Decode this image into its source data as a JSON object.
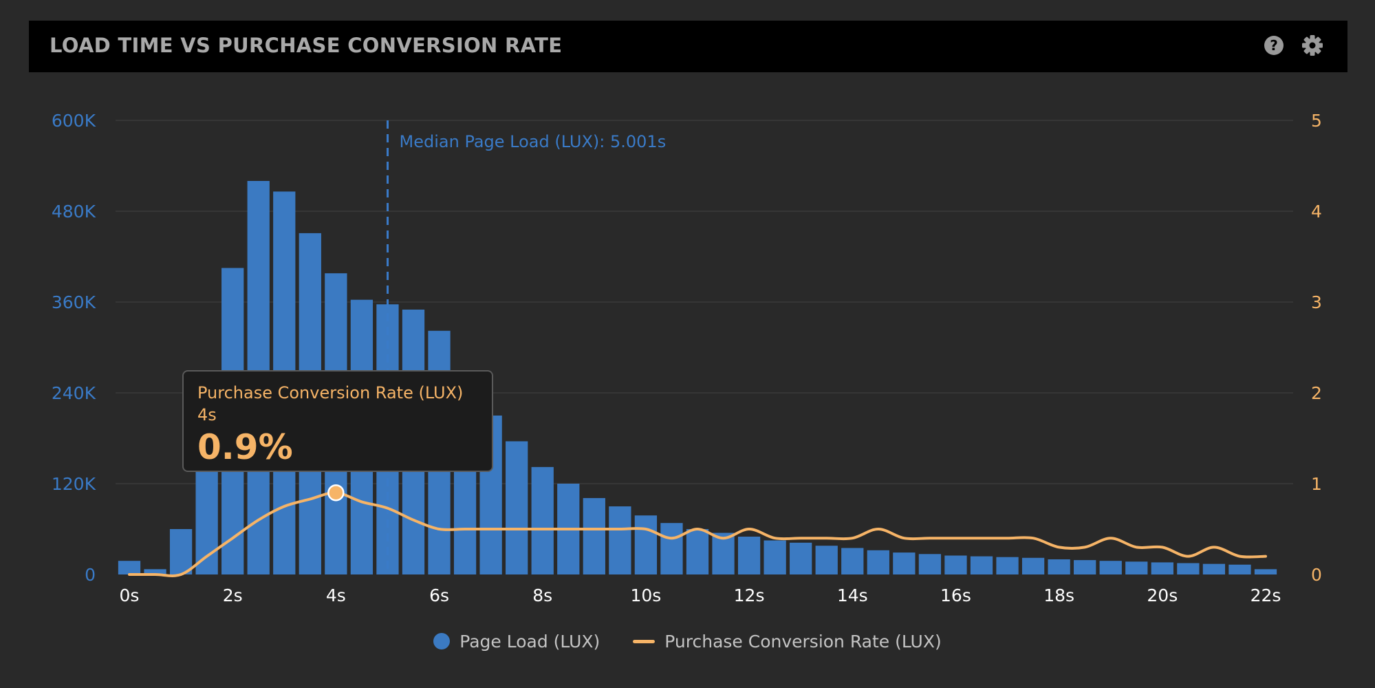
{
  "header": {
    "title": "LOAD TIME VS PURCHASE CONVERSION RATE",
    "help_icon": "help-icon",
    "settings_icon": "gear-icon"
  },
  "colors": {
    "background": "#292929",
    "bars": "#3b7ac2",
    "line": "#f6b467",
    "left_axis": "#3a7bc8",
    "right_axis": "#f6b467",
    "x_axis": "#ffffff",
    "grid": "#3a3a3a"
  },
  "chart_data": {
    "type": "bar",
    "title": "LOAD TIME VS PURCHASE CONVERSION RATE",
    "x_labels": [
      "0s",
      "2s",
      "4s",
      "6s",
      "8s",
      "10s",
      "12s",
      "14s",
      "16s",
      "18s",
      "20s",
      "22s"
    ],
    "x_range": [
      0,
      22
    ],
    "y_left": {
      "ticks": [
        "0",
        "120K",
        "240K",
        "360K",
        "480K",
        "600K"
      ],
      "range": [
        0,
        600000
      ]
    },
    "y_right": {
      "ticks": [
        "0",
        "1",
        "2",
        "3",
        "4",
        "5"
      ],
      "range": [
        0,
        5
      ]
    },
    "grid": true,
    "series": [
      {
        "name": "Page Load (LUX)",
        "type": "bar",
        "axis": "left",
        "x": [
          0,
          0.5,
          1,
          1.5,
          2,
          2.5,
          3,
          3.5,
          4,
          4.5,
          5,
          5.5,
          6,
          6.5,
          7,
          7.5,
          8,
          8.5,
          9,
          9.5,
          10,
          10.5,
          11,
          11.5,
          12,
          12.5,
          13,
          13.5,
          14,
          14.5,
          15,
          15.5,
          16,
          16.5,
          17,
          17.5,
          18,
          18.5,
          19,
          19.5,
          20,
          20.5,
          21,
          21.5,
          22
        ],
        "values": [
          18000,
          7000,
          60000,
          155000,
          405000,
          520000,
          506000,
          451000,
          398000,
          363000,
          357000,
          350000,
          322000,
          257000,
          210000,
          176000,
          142000,
          120000,
          101000,
          90000,
          78000,
          68000,
          60000,
          55000,
          50000,
          45000,
          42000,
          38000,
          35000,
          32000,
          29000,
          27000,
          25000,
          24000,
          23000,
          22000,
          20000,
          19000,
          18000,
          17000,
          16000,
          15000,
          14000,
          13000,
          7000
        ]
      },
      {
        "name": "Purchase Conversion Rate (LUX)",
        "type": "line",
        "axis": "right",
        "x": [
          0,
          0.5,
          1,
          1.5,
          2,
          2.5,
          3,
          3.5,
          4,
          4.5,
          5,
          5.5,
          6,
          6.5,
          7,
          7.5,
          8,
          8.5,
          9,
          9.5,
          10,
          10.5,
          11,
          11.5,
          12,
          12.5,
          13,
          13.5,
          14,
          14.5,
          15,
          15.5,
          16,
          16.5,
          17,
          17.5,
          18,
          18.5,
          19,
          19.5,
          20,
          20.5,
          21,
          21.5,
          22
        ],
        "values": [
          0,
          0,
          0,
          0.2,
          0.4,
          0.6,
          0.75,
          0.83,
          0.9,
          0.8,
          0.73,
          0.6,
          0.5,
          0.5,
          0.5,
          0.5,
          0.5,
          0.5,
          0.5,
          0.5,
          0.5,
          0.4,
          0.5,
          0.4,
          0.5,
          0.4,
          0.4,
          0.4,
          0.4,
          0.5,
          0.4,
          0.4,
          0.4,
          0.4,
          0.4,
          0.4,
          0.3,
          0.3,
          0.4,
          0.3,
          0.3,
          0.2,
          0.3,
          0.2,
          0.2
        ]
      }
    ],
    "annotations": [
      {
        "type": "vertical-line",
        "x": 5.001,
        "label": "Median Page Load (LUX): 5.001s"
      }
    ],
    "legend": {
      "position": "bottom-center"
    }
  },
  "tooltip": {
    "series": "Purchase Conversion Rate (LUX)",
    "x": "4s",
    "value": "0.9%"
  },
  "legend": {
    "items": [
      {
        "label": "Page Load (LUX)"
      },
      {
        "label": "Purchase Conversion Rate (LUX)"
      }
    ]
  }
}
